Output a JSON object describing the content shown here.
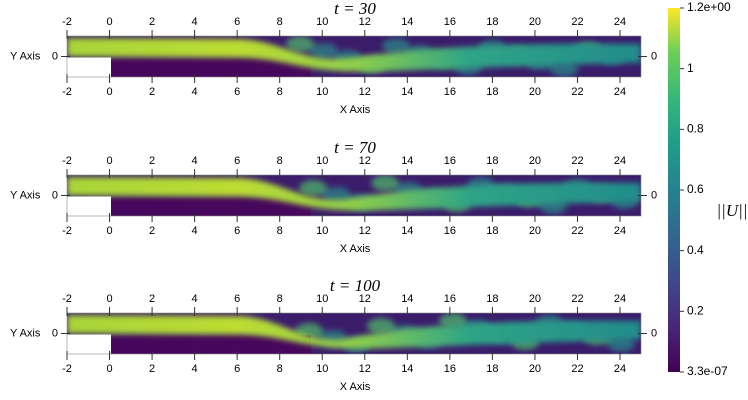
{
  "panels": [
    {
      "title": "t = 30",
      "xlabel": "X Axis",
      "ylabel": "Y Axis",
      "xticks": [
        -2,
        0,
        2,
        4,
        6,
        8,
        10,
        12,
        14,
        16,
        18,
        20,
        22,
        24
      ],
      "yticks": [
        0
      ]
    },
    {
      "title": "t = 70",
      "xlabel": "X Axis",
      "ylabel": "Y Axis",
      "xticks": [
        -2,
        0,
        2,
        4,
        6,
        8,
        10,
        12,
        14,
        16,
        18,
        20,
        22,
        24
      ],
      "yticks": [
        0
      ]
    },
    {
      "title": "t = 100",
      "xlabel": "X Axis",
      "ylabel": "Y Axis",
      "xticks": [
        -2,
        0,
        2,
        4,
        6,
        8,
        10,
        12,
        14,
        16,
        18,
        20,
        22,
        24
      ],
      "yticks": [
        0
      ]
    }
  ],
  "colorbar": {
    "label": "||U||",
    "ticks": [
      {
        "value": 1.2,
        "label": "1.2e+00"
      },
      1,
      0.8,
      0.6,
      0.4,
      0.2,
      {
        "value": 3.3e-07,
        "label": "3.3e-07"
      }
    ]
  }
}
